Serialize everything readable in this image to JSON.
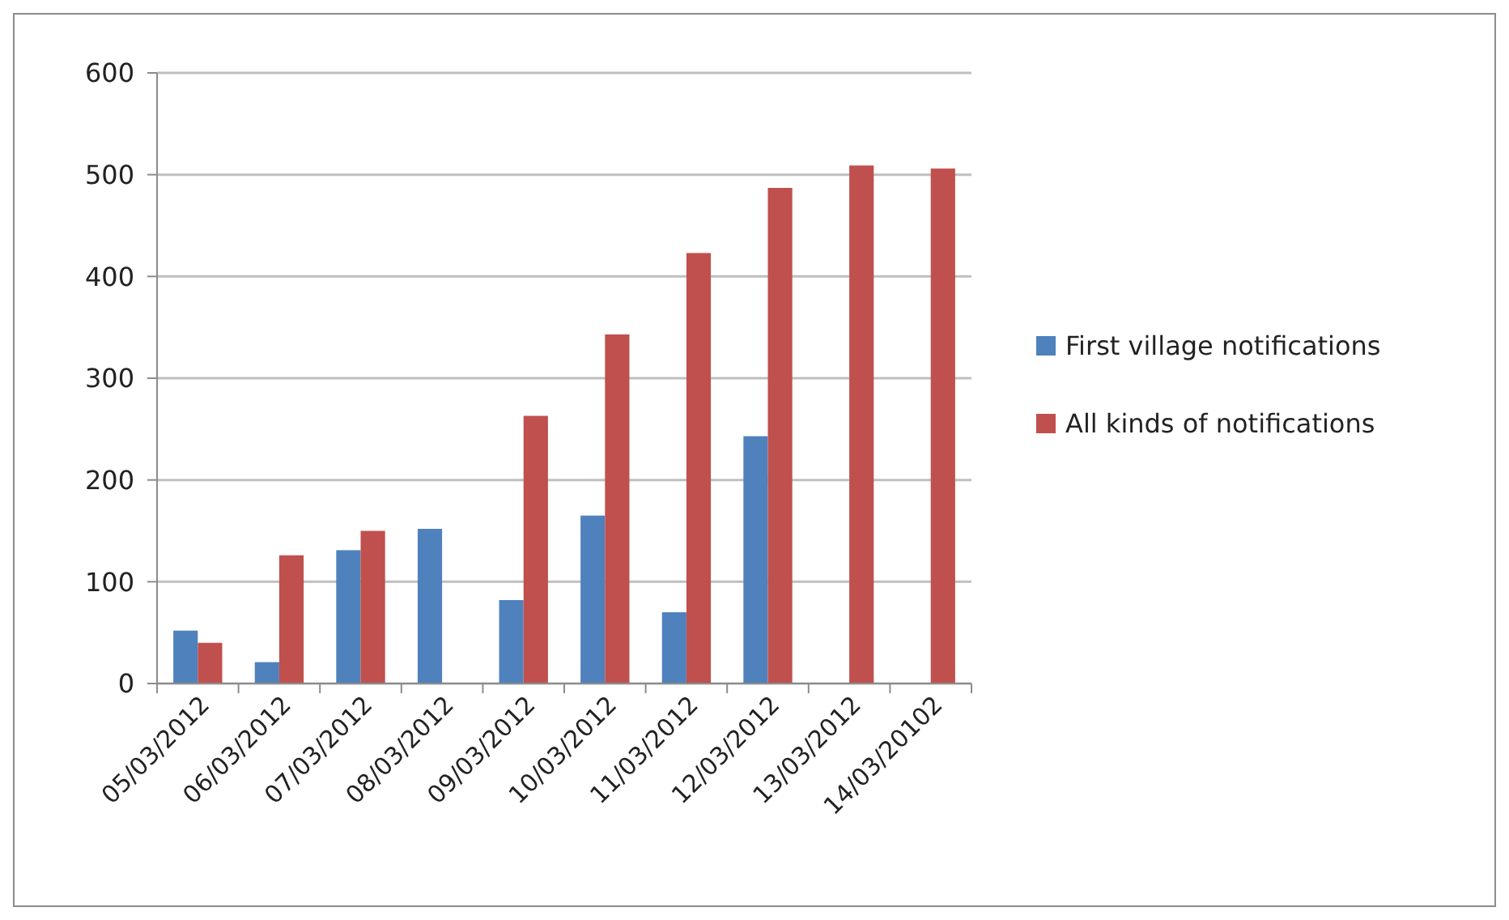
{
  "chart_data": {
    "type": "bar",
    "categories": [
      "05/03/2012",
      "06/03/2012",
      "07/03/2012",
      "08/03/2012",
      "09/03/2012",
      "10/03/2012",
      "11/03/2012",
      "12/03/2012",
      "13/03/2012",
      "14/03/20102"
    ],
    "series": [
      {
        "name": "First village notifications",
        "color": "#4f81bd",
        "values": [
          52,
          21,
          131,
          152,
          82,
          165,
          70,
          243,
          null,
          null
        ]
      },
      {
        "name": "All kinds of notifications",
        "color": "#c0504d",
        "values": [
          40,
          126,
          150,
          null,
          263,
          343,
          423,
          487,
          509,
          506
        ]
      }
    ],
    "ylim": [
      0,
      600
    ],
    "yticks": [
      0,
      100,
      200,
      300,
      400,
      500,
      600
    ],
    "grid": "y",
    "legend": "right"
  }
}
